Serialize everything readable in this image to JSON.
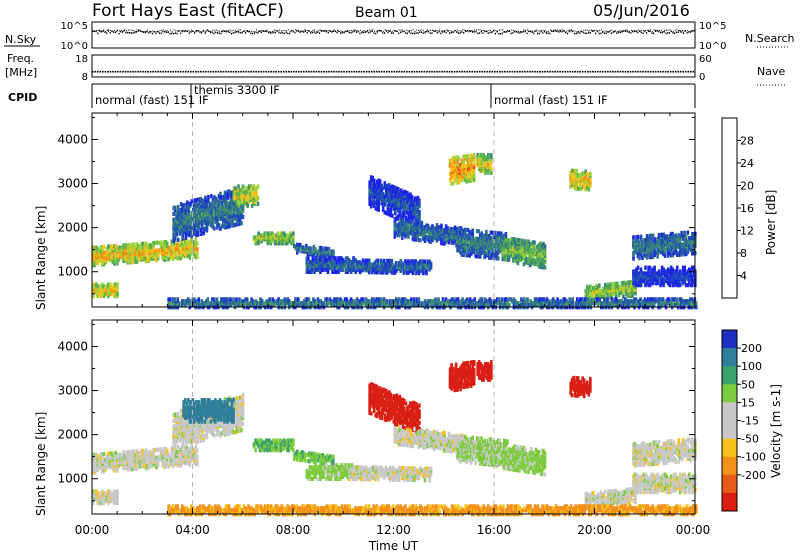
{
  "header": {
    "station": "Fort Hays East (fitACF)",
    "beam": "Beam 01",
    "date": "05/Jun/2016"
  },
  "strips": {
    "nsky_label": "N.Sky",
    "nsky_ticks": [
      "10^5",
      "10^0"
    ],
    "nsearch_label": "N.Search",
    "nsearch_ticks": [
      "10^5",
      "10^0"
    ],
    "freq_label": "Freq.",
    "freq_unit": "[MHz]",
    "freq_ticks": [
      "18",
      "8"
    ],
    "nave_label": "Nave",
    "nave_ticks": [
      "60",
      "0"
    ],
    "cpid_label": "CPID",
    "cpid_segments": [
      {
        "label": "normal (fast) 151 IF",
        "start_hour": 0
      },
      {
        "label": "themis 3300 IF",
        "start_hour": 4
      },
      {
        "label": "normal (fast) 151 IF",
        "start_hour": 16
      }
    ]
  },
  "axes": {
    "xlabel": "Time UT",
    "x_ticks": [
      "00:00",
      "04:00",
      "08:00",
      "12:00",
      "16:00",
      "20:00",
      "00:00"
    ],
    "ylabel": "Slant Range [km]",
    "y_ticks": [
      "1000",
      "2000",
      "3000",
      "4000"
    ]
  },
  "colorbars": {
    "power": {
      "label": "Power [dB]",
      "ticks": [
        "4",
        "8",
        "12",
        "16",
        "20",
        "24",
        "28"
      ],
      "colors": [
        "#1d24e8",
        "#1f4bb8",
        "#2e6f94",
        "#3f8f6f",
        "#57b24a",
        "#9fd13a",
        "#f2c21a",
        "#f28a12",
        "#e44616",
        "#d91e14"
      ]
    },
    "velocity": {
      "label": "Velocity [m s-1]",
      "ticks": [
        "200",
        "100",
        "50",
        "15",
        "-15",
        "-50",
        "-100",
        "-200"
      ],
      "colors": [
        "#1f2fc0",
        "#2f7f9a",
        "#3ba36a",
        "#7ccc3e",
        "#c8c8c8",
        "#c8c8c8",
        "#f5c21b",
        "#f2901a",
        "#e85a18",
        "#d91e14"
      ]
    }
  },
  "chart_data": {
    "type": "heatmap",
    "x_unit": "hour UT",
    "y_unit": "km",
    "xlim": [
      0,
      24
    ],
    "ylim": [
      200,
      4600
    ],
    "markers_hours": [
      4,
      16
    ],
    "nsky_level": 3.2,
    "nsearch_level": 3.4,
    "freq_mhz": 10.4,
    "nave": 12,
    "power_regions": [
      {
        "t0": 0.0,
        "t1": 4.2,
        "r0": 1150,
        "r1": 1550,
        "slope": 45,
        "db": 22
      },
      {
        "t0": 0.0,
        "t1": 1.0,
        "r0": 450,
        "r1": 750,
        "slope": 0,
        "db": 22
      },
      {
        "t0": 3.2,
        "t1": 6.0,
        "r0": 1700,
        "r1": 2500,
        "slope": 150,
        "db": 10
      },
      {
        "t0": 5.6,
        "t1": 6.6,
        "r0": 2500,
        "r1": 2950,
        "slope": 0,
        "db": 20
      },
      {
        "t0": 6.4,
        "t1": 8.0,
        "r0": 1650,
        "r1": 1900,
        "slope": 0,
        "db": 18
      },
      {
        "t0": 8.0,
        "t1": 9.6,
        "r0": 1450,
        "r1": 1650,
        "slope": -80,
        "db": 10
      },
      {
        "t0": 8.5,
        "t1": 10.4,
        "r0": 1000,
        "r1": 1350,
        "slope": 0,
        "db": 8
      },
      {
        "t0": 10.2,
        "t1": 13.5,
        "r0": 1000,
        "r1": 1300,
        "slope": -10,
        "db": 8
      },
      {
        "t0": 11.0,
        "t1": 13.0,
        "r0": 2500,
        "r1": 3200,
        "slope": -250,
        "db": 6
      },
      {
        "t0": 12.0,
        "t1": 14.8,
        "r0": 1800,
        "r1": 2200,
        "slope": -80,
        "db": 9
      },
      {
        "t0": 14.2,
        "t1": 15.2,
        "r0": 3000,
        "r1": 3600,
        "slope": 80,
        "db": 24
      },
      {
        "t0": 15.3,
        "t1": 15.9,
        "r0": 3250,
        "r1": 3650,
        "slope": 0,
        "db": 20
      },
      {
        "t0": 14.5,
        "t1": 16.5,
        "r0": 1400,
        "r1": 2000,
        "slope": -60,
        "db": 10
      },
      {
        "t0": 16.3,
        "t1": 18.0,
        "r0": 1250,
        "r1": 1800,
        "slope": -90,
        "db": 16
      },
      {
        "t0": 19.0,
        "t1": 19.8,
        "r0": 2900,
        "r1": 3300,
        "slope": -40,
        "db": 22
      },
      {
        "t0": 19.6,
        "t1": 21.6,
        "r0": 350,
        "r1": 700,
        "slope": 60,
        "db": 18
      },
      {
        "t0": 21.5,
        "t1": 24.0,
        "r0": 1300,
        "r1": 1800,
        "slope": 50,
        "db": 10
      },
      {
        "t0": 21.5,
        "t1": 24.0,
        "r0": 700,
        "r1": 1100,
        "slope": 0,
        "db": 5
      },
      {
        "t0": 3.0,
        "t1": 24.0,
        "r0": 200,
        "r1": 380,
        "slope": 0,
        "db": 10
      }
    ],
    "velocity_regions": [
      {
        "t0": 0.0,
        "t1": 4.2,
        "r0": 1150,
        "r1": 1550,
        "slope": 45,
        "v": 0
      },
      {
        "t0": 0.0,
        "t1": 1.0,
        "r0": 450,
        "r1": 750,
        "slope": 0,
        "v": 0
      },
      {
        "t0": 3.2,
        "t1": 6.0,
        "r0": 1700,
        "r1": 2500,
        "slope": 150,
        "v": 0
      },
      {
        "t0": 3.6,
        "t1": 5.6,
        "r0": 2300,
        "r1": 2800,
        "slope": 0,
        "v": 120
      },
      {
        "t0": 6.4,
        "t1": 8.0,
        "r0": 1650,
        "r1": 1900,
        "slope": 0,
        "v": 50
      },
      {
        "t0": 8.0,
        "t1": 9.6,
        "r0": 1450,
        "r1": 1650,
        "slope": -80,
        "v": 40
      },
      {
        "t0": 8.5,
        "t1": 10.4,
        "r0": 1000,
        "r1": 1350,
        "slope": 0,
        "v": 30
      },
      {
        "t0": 10.2,
        "t1": 13.5,
        "r0": 1000,
        "r1": 1300,
        "slope": -10,
        "v": 0
      },
      {
        "t0": 11.0,
        "t1": 13.0,
        "r0": 2500,
        "r1": 3200,
        "slope": -250,
        "v": -220
      },
      {
        "t0": 12.0,
        "t1": 14.8,
        "r0": 1800,
        "r1": 2200,
        "slope": -80,
        "v": 0
      },
      {
        "t0": 14.2,
        "t1": 15.2,
        "r0": 3000,
        "r1": 3600,
        "slope": 80,
        "v": -220
      },
      {
        "t0": 15.3,
        "t1": 15.9,
        "r0": 3250,
        "r1": 3650,
        "slope": 0,
        "v": -220
      },
      {
        "t0": 14.5,
        "t1": 16.5,
        "r0": 1400,
        "r1": 2000,
        "slope": -60,
        "v": 20
      },
      {
        "t0": 16.3,
        "t1": 18.0,
        "r0": 1250,
        "r1": 1800,
        "slope": -90,
        "v": 25
      },
      {
        "t0": 19.0,
        "t1": 19.8,
        "r0": 2900,
        "r1": 3300,
        "slope": -40,
        "v": -220
      },
      {
        "t0": 19.6,
        "t1": 21.6,
        "r0": 350,
        "r1": 700,
        "slope": 60,
        "v": 0
      },
      {
        "t0": 21.5,
        "t1": 24.0,
        "r0": 1300,
        "r1": 1800,
        "slope": 50,
        "v": 0
      },
      {
        "t0": 21.5,
        "t1": 24.0,
        "r0": 700,
        "r1": 1100,
        "slope": 0,
        "v": 0
      },
      {
        "t0": 3.0,
        "t1": 24.0,
        "r0": 200,
        "r1": 380,
        "slope": 0,
        "v": -60
      }
    ]
  }
}
